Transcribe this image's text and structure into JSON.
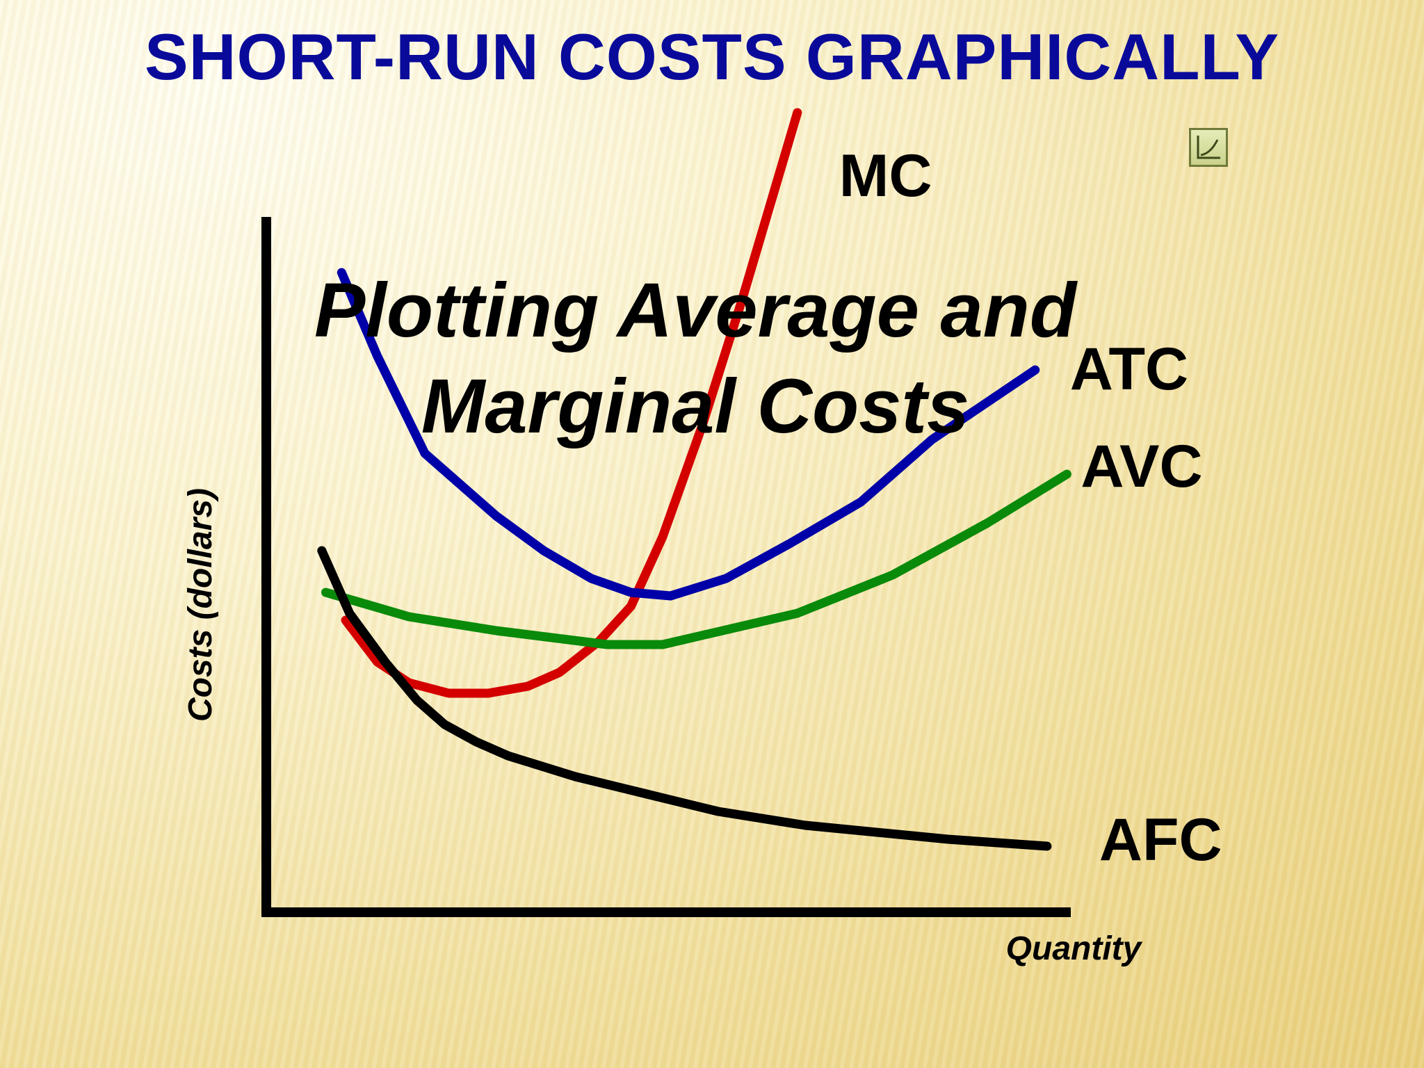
{
  "slide": {
    "title": "SHORT-RUN COSTS GRAPHICALLY",
    "overlay_line1": "Plotting Average and",
    "overlay_line2": "Marginal Costs",
    "corner_icon": "cost-curve-icon"
  },
  "colors": {
    "title": "#0a0a9a",
    "MC": "#d40000",
    "ATC": "#0000a8",
    "AVC": "#0a8a0a",
    "AFC": "#000000"
  },
  "chart_data": {
    "type": "line",
    "title": "",
    "xlabel": "Quantity",
    "ylabel": "Costs (dollars)",
    "grid": false,
    "legend": "curve labels at right end of each line",
    "xlim": [
      0,
      100
    ],
    "ylim": [
      0,
      100
    ],
    "series": [
      {
        "name": "MC",
        "color": "#d40000",
        "points": [
          [
            10,
            42
          ],
          [
            14,
            36
          ],
          [
            18,
            33
          ],
          [
            23,
            31.5
          ],
          [
            28,
            31.5
          ],
          [
            33,
            32.5
          ],
          [
            37,
            34.5
          ],
          [
            42,
            39
          ],
          [
            46,
            44
          ],
          [
            50,
            54
          ],
          [
            55,
            70
          ],
          [
            60,
            88
          ],
          [
            67,
            115
          ]
        ]
      },
      {
        "name": "ATC",
        "color": "#0000a8",
        "points": [
          [
            9.5,
            92
          ],
          [
            14,
            80
          ],
          [
            20,
            66
          ],
          [
            29,
            57
          ],
          [
            35,
            52
          ],
          [
            41,
            48
          ],
          [
            46,
            46
          ],
          [
            51,
            45.5
          ],
          [
            58,
            48
          ],
          [
            66,
            53
          ],
          [
            75,
            59
          ],
          [
            84,
            68
          ],
          [
            97,
            78
          ]
        ]
      },
      {
        "name": "AVC",
        "color": "#0a8a0a",
        "points": [
          [
            7.5,
            46
          ],
          [
            18,
            42.5
          ],
          [
            29,
            40.5
          ],
          [
            43,
            38.5
          ],
          [
            50,
            38.5
          ],
          [
            67,
            43
          ],
          [
            79,
            48.5
          ],
          [
            91,
            56
          ],
          [
            101,
            63
          ]
        ]
      },
      {
        "name": "AFC",
        "color": "#000000",
        "points": [
          [
            7,
            52
          ],
          [
            10.5,
            43
          ],
          [
            15,
            36
          ],
          [
            19,
            30.5
          ],
          [
            22.5,
            27
          ],
          [
            26.5,
            24.5
          ],
          [
            30.5,
            22.5
          ],
          [
            39,
            19.5
          ],
          [
            48,
            17
          ],
          [
            57,
            14.5
          ],
          [
            68,
            12.5
          ],
          [
            86,
            10.5
          ],
          [
            98.5,
            9.5
          ]
        ]
      }
    ]
  }
}
